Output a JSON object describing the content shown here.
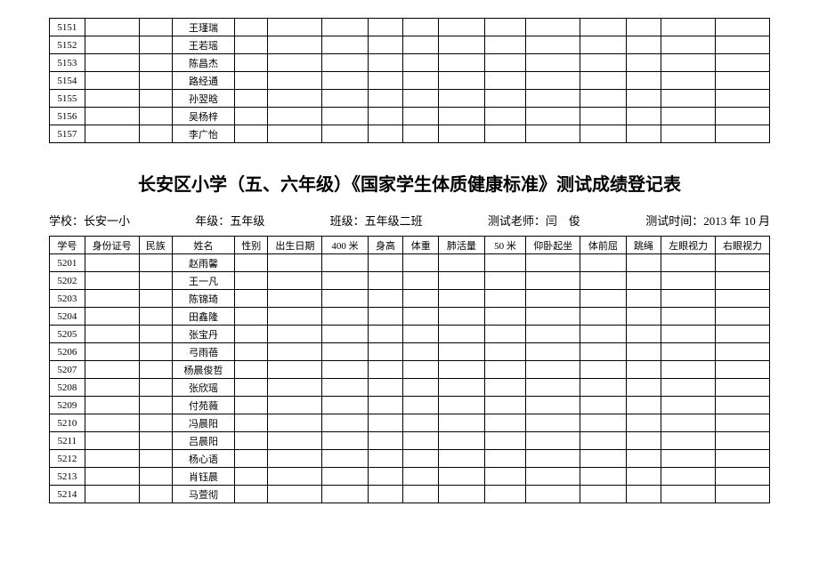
{
  "title": "长安区小学（五、六年级）《国家学生体质健康标准》测试成绩登记表",
  "info": {
    "school_label": "学校：",
    "school_value": "长安一小",
    "grade_label": "年级：",
    "grade_value": "五年级",
    "class_label": "班级：",
    "class_value": "五年级二班",
    "teacher_label": "测试老师：",
    "teacher_value": "闫　俊",
    "time_label": "测试时间：",
    "time_value": "2013 年 10 月"
  },
  "headers": [
    "学号",
    "身份证号",
    "民族",
    "姓名",
    "性别",
    "出生日期",
    "400 米",
    "身高",
    "体重",
    "肺活量",
    "50 米",
    "仰卧起坐",
    "体前屈",
    "跳绳",
    "左眼视力",
    "右眼视力"
  ],
  "colClasses": [
    "c-id",
    "c-idn",
    "c-eth",
    "c-name",
    "c-sex",
    "c-dob",
    "c-400",
    "c-h",
    "c-w",
    "c-lung",
    "c-50",
    "c-sit",
    "c-fwd",
    "c-rope",
    "c-lv",
    "c-rv"
  ],
  "table1_rows": [
    {
      "id": "5151",
      "name": "王瑾瑞"
    },
    {
      "id": "5152",
      "name": "王若瑶"
    },
    {
      "id": "5153",
      "name": "陈昌杰"
    },
    {
      "id": "5154",
      "name": "路经通"
    },
    {
      "id": "5155",
      "name": "孙翌晗"
    },
    {
      "id": "5156",
      "name": "吴杨梓"
    },
    {
      "id": "5157",
      "name": "李广怡"
    }
  ],
  "table2_rows": [
    {
      "id": "5201",
      "name": "赵雨馨"
    },
    {
      "id": "5202",
      "name": "王一凡"
    },
    {
      "id": "5203",
      "name": "陈锦琦"
    },
    {
      "id": "5204",
      "name": "田鑫隆"
    },
    {
      "id": "5205",
      "name": "张宝丹"
    },
    {
      "id": "5206",
      "name": "弓雨蓓"
    },
    {
      "id": "5207",
      "name": "杨晨俊哲"
    },
    {
      "id": "5208",
      "name": "张欣瑶"
    },
    {
      "id": "5209",
      "name": "付苑薇"
    },
    {
      "id": "5210",
      "name": "冯晨阳"
    },
    {
      "id": "5211",
      "name": "吕晨阳"
    },
    {
      "id": "5212",
      "name": "杨心语"
    },
    {
      "id": "5213",
      "name": "肖钰晨"
    },
    {
      "id": "5214",
      "name": "马萱彻"
    }
  ]
}
